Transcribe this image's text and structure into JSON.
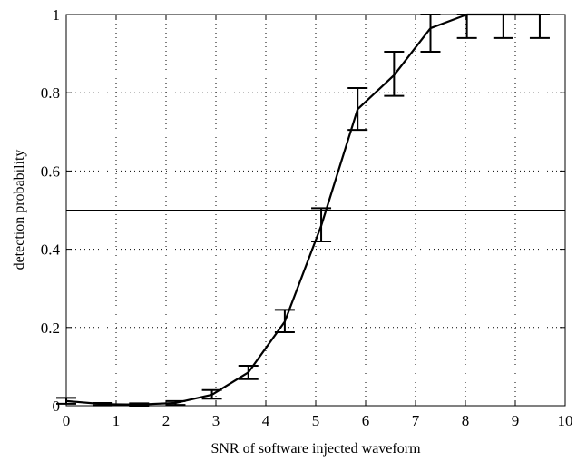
{
  "chart_data": {
    "type": "line",
    "title": "",
    "xlabel": "SNR of software injected waveform",
    "ylabel": "detection probability",
    "xlim": [
      0,
      10
    ],
    "ylim": [
      0,
      1
    ],
    "x_ticks": [
      "0",
      "1",
      "2",
      "3",
      "4",
      "5",
      "6",
      "7",
      "8",
      "9",
      "10"
    ],
    "y_ticks": [
      "0",
      "0.2",
      "0.4",
      "0.6",
      "0.8",
      "1"
    ],
    "grid": true,
    "reference_line": {
      "y": 0.5
    },
    "series": [
      {
        "x": [
          0.0,
          0.73,
          1.46,
          2.19,
          2.92,
          3.65,
          4.38,
          5.11,
          5.84,
          6.57,
          7.3,
          8.03,
          8.76,
          9.49
        ],
        "y": [
          0.012,
          0.004,
          0.003,
          0.007,
          0.028,
          0.085,
          0.215,
          0.46,
          0.758,
          0.845,
          0.965,
          1.0,
          1.0,
          1.0
        ],
        "err_low": [
          0.005,
          0.001,
          0.0,
          0.002,
          0.018,
          0.068,
          0.188,
          0.42,
          0.705,
          0.792,
          0.905,
          0.94,
          0.94,
          0.94
        ],
        "err_high": [
          0.02,
          0.007,
          0.006,
          0.012,
          0.04,
          0.102,
          0.245,
          0.505,
          0.812,
          0.905,
          1.0,
          1.0,
          1.0,
          1.0
        ]
      }
    ]
  }
}
